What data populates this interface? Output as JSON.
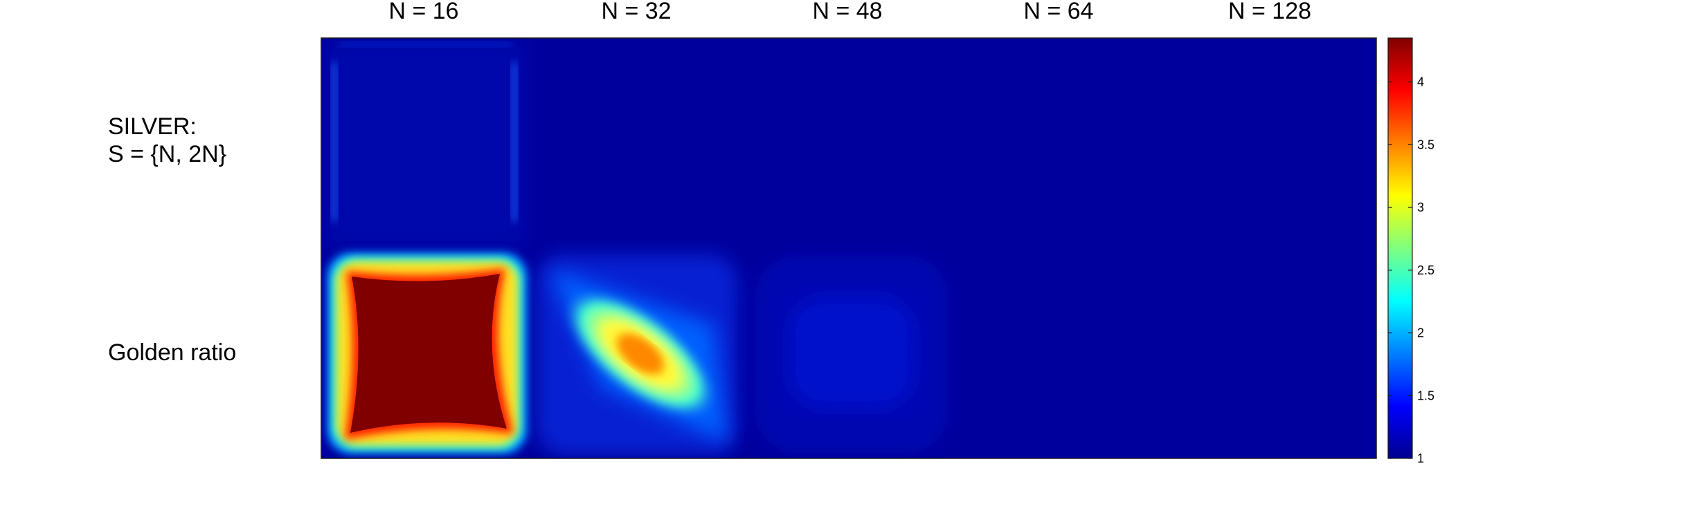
{
  "chart_data": {
    "type": "heatmap",
    "columns": [
      "N = 16",
      "N = 32",
      "N = 48",
      "N = 64",
      "N = 128"
    ],
    "rows": [
      {
        "label_lines": [
          "SILVER:",
          "S = {N, 2N}"
        ],
        "peak": [
          1.6,
          1.0,
          1.0,
          1.0,
          1.0
        ]
      },
      {
        "label_lines": [
          "Golden ratio"
        ],
        "peak": [
          4.3,
          3.6,
          1.25,
          1.0,
          1.0
        ]
      }
    ],
    "colorbar": {
      "range": [
        1,
        4.35
      ],
      "ticks": [
        "1",
        "1.5",
        "2",
        "2.5",
        "3",
        "3.5",
        "4"
      ],
      "colormap": "jet"
    }
  }
}
